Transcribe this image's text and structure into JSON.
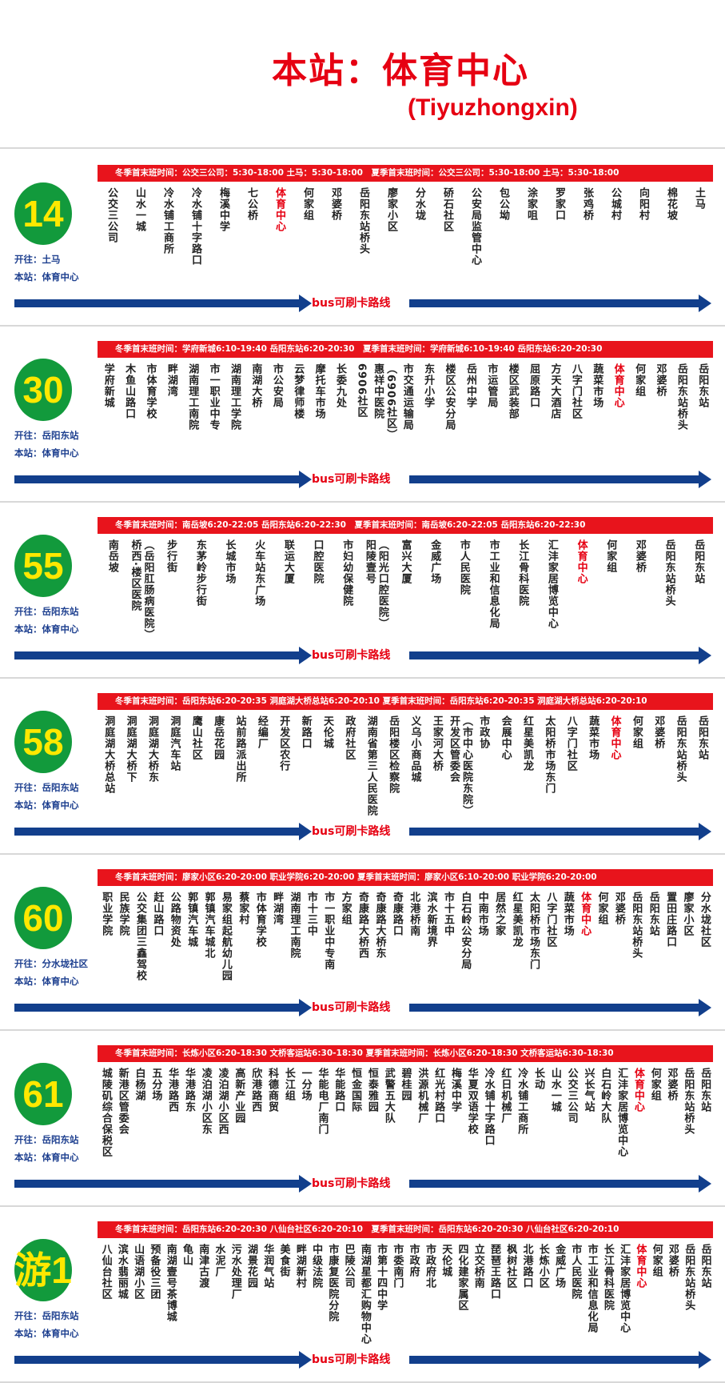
{
  "header": {
    "title": "本站：体育中心",
    "subtitle": "(Tiyuzhongxin)"
  },
  "colors": {
    "title": "#e60012",
    "schedule_bar": "#e8141c",
    "badge_bg": "#129a3c",
    "badge_text": "#ffe800",
    "arrow": "#123f8c",
    "info_text": "#1d3f8f",
    "current_stop": "#e60012"
  },
  "current_stop": "体育中心",
  "routes": [
    {
      "number": "14",
      "schedule": "冬季首末班时间：公交三公司：5:30-18:00 土马：5:30-18:00　夏季首末班时间：公交三公司：5:30-18:00 土马：5:30-18:00",
      "direction": "开往：土马",
      "here": "本站：体育中心",
      "arrow_label": "bus可刷卡路线",
      "stops": [
        "公交三公司",
        "山水一城",
        "冷水铺工商所",
        "冷水铺十字路口",
        "梅溪中学",
        "七公桥",
        "体育中心",
        "何家组",
        "邓婆桥",
        "岳阳东站桥头",
        "廖家小区",
        "分水垅",
        "硚石社区",
        "公安局监管中心",
        "包公坳",
        "涂家咀",
        "罗家口",
        "张鸡桥",
        "公城村",
        "向阳村",
        "棉花坡",
        "土马"
      ]
    },
    {
      "number": "30",
      "schedule": "冬季首末班时间：学府新城6:10-19:40 岳阳东站6:20-20:30　夏季首末班时间：学府新城6:10-19:40 岳阳东站6:20-20:30",
      "direction": "开往：岳阳东站",
      "here": "本站：体育中心",
      "arrow_label": "bus可刷卡路线",
      "stops": [
        "学府新城",
        "木鱼山路口",
        "市体育学校",
        "畔湖湾",
        "湖南理工南院",
        "市一职业中专",
        "湖南理工学院",
        "南湖大桥",
        "市公安局",
        "云梦律师楼",
        "摩托车市场",
        "长委九处",
        "6906社区",
        "惠祥中医院（6906社区）",
        "市交通运输局",
        "东升小学",
        "楼区公安分局",
        "岳州中学",
        "市运管局",
        "楼区武装部",
        "屈原路口",
        "方天大酒店",
        "八字门社区",
        "蔬菜市场",
        "体育中心",
        "何家组",
        "邓婆桥",
        "岳阳东站桥头",
        "岳阳东站"
      ]
    },
    {
      "number": "55",
      "schedule": "冬季首末班时间：南岳坡6:20-22:05 岳阳东站6:20-22:30　夏季首末班时间：南岳坡6:20-22:05 岳阳东站6:20-22:30",
      "direction": "开往：岳阳东站",
      "here": "本站：体育中心",
      "arrow_label": "bus可刷卡路线",
      "stops": [
        "南岳坡",
        "桥西·楼区医院（岳阳肛肠病医院）",
        "步行街",
        "东茅岭步行街",
        "长城市场",
        "火车站东广场",
        "联运大厦",
        "口腔医院",
        "市妇幼保健院",
        "阳陵壹号（阳光口腔医院）",
        "富兴大厦",
        "金威广场",
        "市人民医院",
        "市工业和信息化局",
        "长江骨科医院",
        "汇沣家居博览中心",
        "体育中心",
        "何家组",
        "邓婆桥",
        "岳阳东站桥头",
        "岳阳东站"
      ]
    },
    {
      "number": "58",
      "schedule": "冬季首末班时间：岳阳东站6:20-20:35 洞庭湖大桥总站6:20-20:10 夏季首末班时间：岳阳东站6:20-20:35 洞庭湖大桥总站6:20-20:10",
      "direction": "开往：岳阳东站",
      "here": "本站：体育中心",
      "arrow_label": "bus可刷卡路线",
      "stops": [
        "洞庭湖大桥总站",
        "洞庭湖大桥下",
        "洞庭湖大桥东",
        "洞庭汽车站",
        "鹰山社区",
        "康岳花园",
        "站前路派出所",
        "经编厂",
        "开发区农行",
        "新路口",
        "天伦城",
        "政府社区",
        "湖南省第三人民医院",
        "岳阳楼区检察院",
        "义乌小商品城",
        "王家河大桥",
        "开发区管委会（市中心医院东院）",
        "市政协",
        "会展中心",
        "红星美凯龙",
        "太阳桥市场东门",
        "八字门社区",
        "蔬菜市场",
        "体育中心",
        "何家组",
        "邓婆桥",
        "岳阳东站桥头",
        "岳阳东站"
      ]
    },
    {
      "number": "60",
      "schedule": "冬季首末班时间：廖家小区6:20-20:00 职业学院6:20-20:00 夏季首末班时间：廖家小区6:10-20:00 职业学院6:20-20:00",
      "direction": "开往：分水垅社区",
      "here": "本站：体育中心",
      "arrow_label": "bus可刷卡路线",
      "stops": [
        "职业学院",
        "民族学院",
        "公交集团三鑫驾校",
        "赶山路口",
        "公路物资处",
        "郭镇汽车城",
        "郭镇汽车城北",
        "易家组起航幼儿园",
        "蔡家村",
        "市体育学校",
        "畔湖湾",
        "湖南理工南院",
        "市十三中",
        "市一职业中专南",
        "方家组",
        "奇康路大桥西",
        "奇康路大桥东",
        "奇康路口",
        "北港桥南",
        "滨水新境界",
        "市十五中",
        "白石岭公安分局",
        "中南市场",
        "居然之家",
        "红星美凯龙",
        "太阳桥市场东门",
        "八字门社区",
        "蔬菜市场",
        "体育中心",
        "何家组",
        "邓婆桥",
        "岳阳东站桥头",
        "岳阳东站",
        "置田庄路口",
        "廖家小区",
        "分水垅社区"
      ]
    },
    {
      "number": "61",
      "schedule": "冬季首末班时间：长炼小区6:20-18:30 文桥客运站6:30-18:30 夏季首末班时间：长炼小区6:20-18:30 文桥客运站6:30-18:30",
      "direction": "开往：岳阳东站",
      "here": "本站：体育中心",
      "arrow_label": "bus可刷卡路线",
      "stops": [
        "城陵矶综合保税区",
        "新港区管委会",
        "白杨湖",
        "五分场",
        "华港路西",
        "华港路东",
        "凌泊湖小区东",
        "凌泊湖小区西",
        "高新产业园",
        "欣港路西",
        "科德商贸",
        "长江组",
        "一分场",
        "华能电厂南门",
        "华能路口",
        "恒金国际",
        "恒泰雅园",
        "武警五大队",
        "碧桂园",
        "洪源机械厂",
        "红光村路口",
        "梅溪中学",
        "华夏双语学校",
        "冷水铺十字路口",
        "红日机械厂",
        "冷水铺工商所",
        "长动",
        "山水一城",
        "公交三公司",
        "兴长气站",
        "白石岭大队",
        "汇沣家居博览中心",
        "体育中心",
        "何家组",
        "邓婆桥",
        "岳阳东站桥头",
        "岳阳东站"
      ]
    },
    {
      "number": "游1",
      "schedule": "冬季首末班时间：岳阳东站6:20-20:30 八仙台社区6:20-20:10　夏季首末班时间：岳阳东站6:20-20:30 八仙台社区6:20-20:10",
      "direction": "开往：岳阳东站",
      "here": "本站：体育中心",
      "arrow_label": "bus可刷卡路线",
      "stops": [
        "八仙台社区",
        "滨水翡丽城",
        "山语湖小区",
        "预备役三团",
        "南湖壹号茶博城",
        "龟山",
        "南津古渡",
        "水泥厂",
        "污水处理厂",
        "湖景花园",
        "华润气站",
        "美食街",
        "畔湖新村",
        "中级法院",
        "市康复医院分院",
        "巴陵公司",
        "南湖星都汇购物中心",
        "市第十四中学",
        "市委南门",
        "市政府",
        "市政府北",
        "天伦城",
        "四化建家属区",
        "立交桥南",
        "琵琶王路口",
        "枫树社区",
        "北港路口",
        "长炼小区",
        "金威广场",
        "市人民医院",
        "市工业和信息化局",
        "长江骨科医院",
        "汇沣家居博览中心",
        "体育中心",
        "何家组",
        "邓婆桥",
        "岳阳东站桥头",
        "岳阳东站"
      ]
    }
  ]
}
